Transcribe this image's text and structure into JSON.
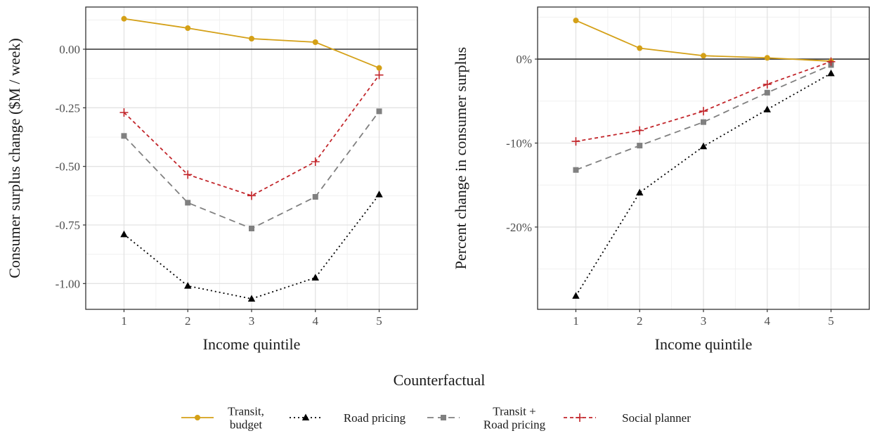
{
  "chart_data": [
    {
      "type": "line",
      "xlabel": "Income quintile",
      "ylabel": "Consumer surplus change ($M / week)",
      "x": [
        1,
        2,
        3,
        4,
        5
      ],
      "x_ticks": [
        "1",
        "2",
        "3",
        "4",
        "5"
      ],
      "xlim": [
        0.4,
        5.6
      ],
      "ylim": [
        -1.11,
        0.18
      ],
      "y_ticks": [
        0.0,
        -0.25,
        -0.5,
        -0.75,
        -1.0
      ],
      "y_tick_labels": [
        "0.00",
        "-0.25",
        "-0.50",
        "-0.75",
        "-1.00"
      ],
      "hline": 0,
      "grid": true,
      "series": [
        {
          "name": "Transit, budget",
          "values": [
            0.13,
            0.09,
            0.045,
            0.03,
            -0.08
          ]
        },
        {
          "name": "Road pricing",
          "values": [
            -0.79,
            -1.01,
            -1.065,
            -0.975,
            -0.62
          ]
        },
        {
          "name": "Transit + Road pricing",
          "values": [
            -0.37,
            -0.655,
            -0.765,
            -0.63,
            -0.265
          ]
        },
        {
          "name": "Social planner",
          "values": [
            -0.27,
            -0.535,
            -0.625,
            -0.48,
            -0.11
          ]
        }
      ]
    },
    {
      "type": "line",
      "xlabel": "Income quintile",
      "ylabel": "Percent change in consumer surplus",
      "x": [
        1,
        2,
        3,
        4,
        5
      ],
      "x_ticks": [
        "1",
        "2",
        "3",
        "4",
        "5"
      ],
      "xlim": [
        0.4,
        5.6
      ],
      "ylim": [
        -29.8,
        6.2
      ],
      "y_ticks": [
        0,
        -10,
        -20
      ],
      "y_tick_labels": [
        "0%",
        "-10%",
        "-20%"
      ],
      "hline": 0,
      "grid": true,
      "series": [
        {
          "name": "Transit, budget",
          "values": [
            4.6,
            1.3,
            0.4,
            0.15,
            -0.25
          ]
        },
        {
          "name": "Road pricing",
          "values": [
            -28.2,
            -15.9,
            -10.4,
            -6.0,
            -1.7
          ]
        },
        {
          "name": "Transit + Road pricing",
          "values": [
            -13.2,
            -10.3,
            -7.5,
            -4.0,
            -0.7
          ]
        },
        {
          "name": "Social planner",
          "values": [
            -9.8,
            -8.5,
            -6.2,
            -3.0,
            -0.3
          ]
        }
      ]
    }
  ],
  "legend": {
    "title": "Counterfactual",
    "position": "bottom",
    "items": [
      {
        "label_lines": [
          "Transit,",
          "budget"
        ],
        "color": "#d4a017",
        "dash": "solid",
        "marker": "circle"
      },
      {
        "label_lines": [
          "Road pricing"
        ],
        "color": "#000000",
        "dash": "dotted",
        "marker": "triangle"
      },
      {
        "label_lines": [
          "Transit +",
          "Road pricing"
        ],
        "color": "#808080",
        "dash": "dashed",
        "marker": "square"
      },
      {
        "label_lines": [
          "Social planner"
        ],
        "color": "#c2262b",
        "dash": "shortdash",
        "marker": "plus"
      }
    ]
  }
}
